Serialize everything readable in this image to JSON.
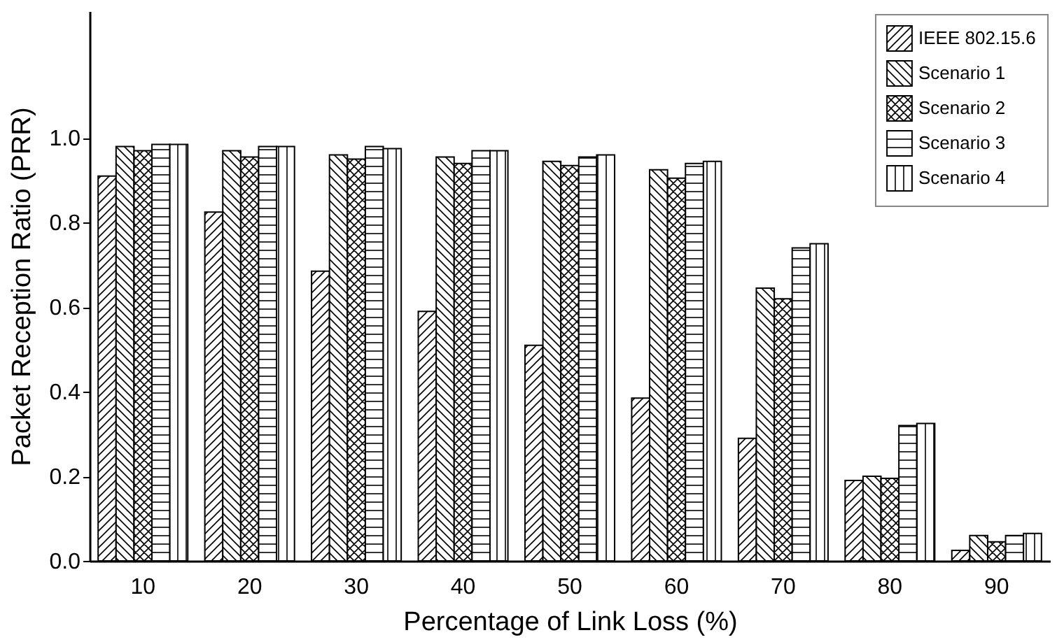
{
  "chart_data": {
    "type": "bar",
    "xlabel": "Percentage of Link Loss (%)",
    "ylabel": "Packet Reception Ratio (PRR)",
    "categories": [
      "10",
      "20",
      "30",
      "40",
      "50",
      "60",
      "70",
      "80",
      "90"
    ],
    "series": [
      {
        "name": "IEEE 802.15.6",
        "color": "#000000",
        "values": [
          0.91,
          0.825,
          0.685,
          0.59,
          0.51,
          0.385,
          0.29,
          0.19,
          0.025
        ]
      },
      {
        "name": "Scenario 1",
        "color": "#000000",
        "values": [
          0.98,
          0.97,
          0.96,
          0.955,
          0.945,
          0.925,
          0.645,
          0.2,
          0.06
        ]
      },
      {
        "name": "Scenario 2",
        "color": "#000000",
        "values": [
          0.97,
          0.955,
          0.95,
          0.94,
          0.935,
          0.905,
          0.62,
          0.195,
          0.045
        ]
      },
      {
        "name": "Scenario 3",
        "color": "#000000",
        "values": [
          0.985,
          0.98,
          0.98,
          0.97,
          0.955,
          0.94,
          0.74,
          0.32,
          0.06
        ]
      },
      {
        "name": "Scenario 4",
        "color": "#000000",
        "values": [
          0.985,
          0.98,
          0.975,
          0.97,
          0.96,
          0.945,
          0.75,
          0.325,
          0.065
        ]
      }
    ],
    "ylim": [
      0,
      1.3
    ],
    "yticks": [
      {
        "value": 0,
        "label": "0.0"
      },
      0.2,
      0.4,
      0.6,
      0.8,
      {
        "value": 1,
        "label": "1.0"
      }
    ],
    "grid": false,
    "legend": "top right"
  }
}
